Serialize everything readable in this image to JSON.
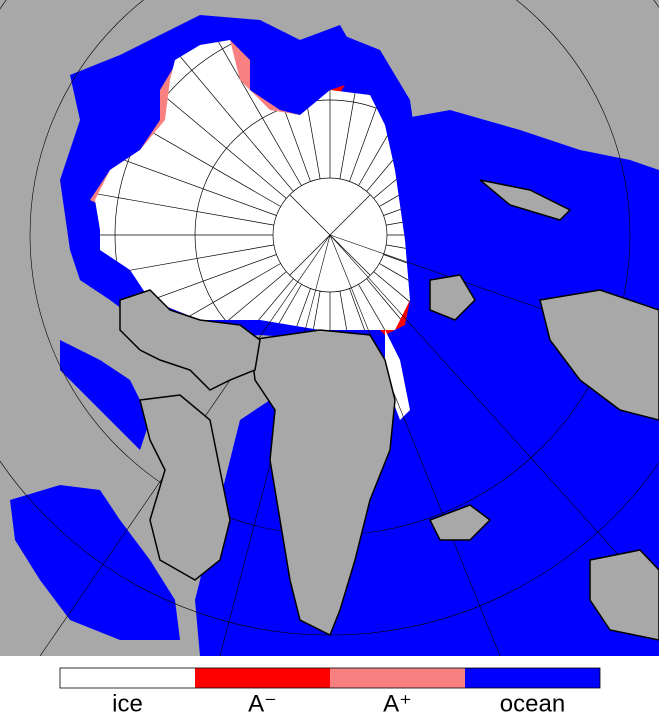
{
  "legend": {
    "items": [
      {
        "label": "ice",
        "color": "#ffffff"
      },
      {
        "label": "A⁻",
        "color": "#ff0000"
      },
      {
        "label": "A⁺",
        "color": "#f88080"
      },
      {
        "label": "ocean",
        "color": "#0000ff"
      }
    ]
  }
}
